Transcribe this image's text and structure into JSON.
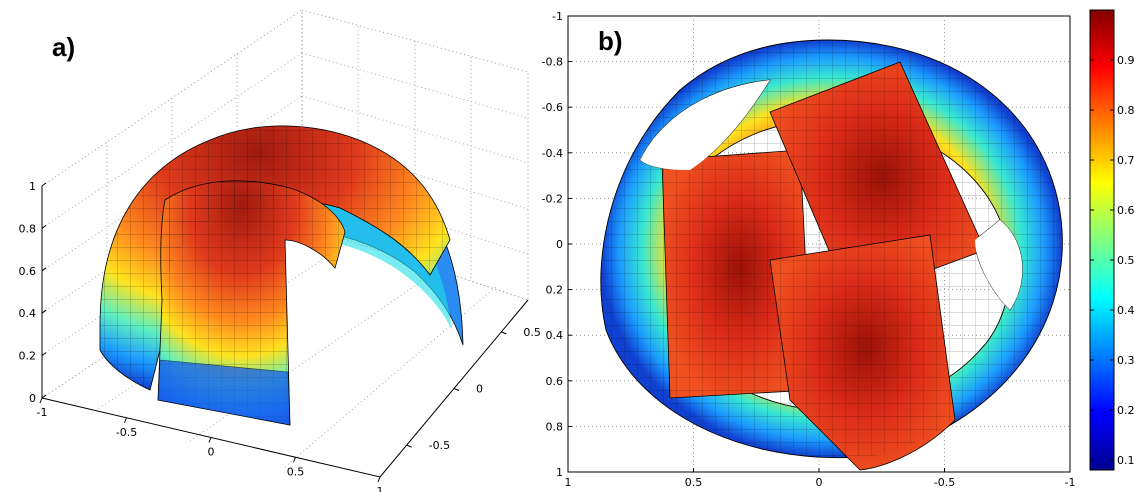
{
  "chart_data": [
    {
      "panel": "a)",
      "type": "surface3d",
      "title": "",
      "xlabel": "",
      "ylabel": "",
      "zlabel": "",
      "x_ticks": [
        "-1",
        "-0.5",
        "0",
        "0.5",
        "1"
      ],
      "y_ticks": [
        "-0.5",
        "0",
        "0.5"
      ],
      "z_ticks": [
        "0",
        "0.2",
        "0.4",
        "0.6",
        "0.8",
        "1"
      ],
      "xlim": [
        -1,
        1
      ],
      "ylim": [
        -1,
        1
      ],
      "zlim": [
        0,
        1
      ],
      "grid": true,
      "colormap": "jet",
      "surfaces": [
        {
          "shape": "overlapping spherical patches",
          "count": 3
        }
      ]
    },
    {
      "panel": "b)",
      "type": "surface2d",
      "title": "",
      "xlabel": "",
      "ylabel": "",
      "x_ticks": [
        "1",
        "0.5",
        "0",
        "-0.5",
        "-1"
      ],
      "y_ticks": [
        "-1",
        "-0.8",
        "-0.6",
        "-0.4",
        "-0.2",
        "0",
        "0.2",
        "0.4",
        "0.6",
        "0.8",
        "1"
      ],
      "xlim": [
        1,
        -1
      ],
      "ylim": [
        -1,
        1
      ],
      "grid": true,
      "colormap": "jet",
      "colorbar": {
        "ticks": [
          "0.1",
          "0.2",
          "0.3",
          "0.4",
          "0.5",
          "0.6",
          "0.7",
          "0.8",
          "0.9"
        ],
        "range": [
          0.08,
          1.0
        ],
        "location": "right"
      }
    }
  ]
}
